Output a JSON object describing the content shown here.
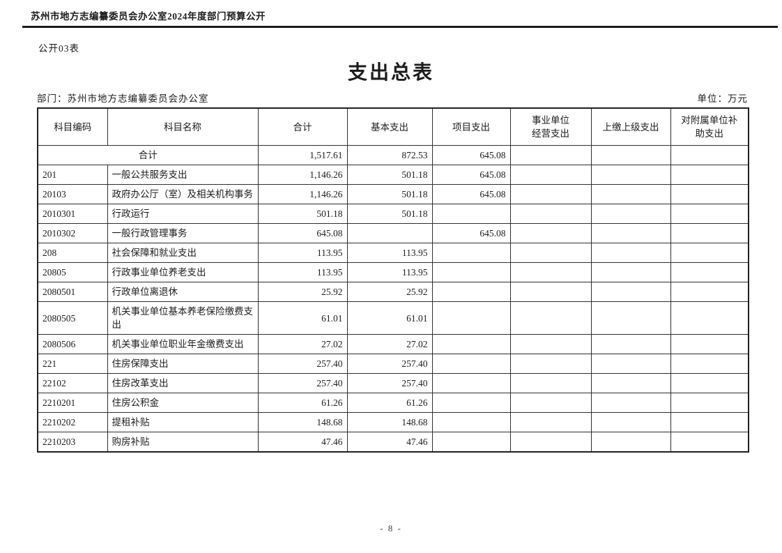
{
  "page": {
    "header_title": "苏州市地方志编纂委员会办公室2024年度部门预算公开",
    "form_label": "公开03表",
    "title": "支出总表",
    "department_label": "部门：苏州市地方志编纂委员会办公室",
    "unit_label": "单位：万元",
    "page_number": "- 8 -"
  },
  "table": {
    "columns": [
      "科目编码",
      "科目名称",
      "合计",
      "基本支出",
      "项目支出",
      "事业单位\n经营支出",
      "上缴上级支出",
      "对附属单位补\n助支出"
    ],
    "total_row": {
      "label": "合计",
      "total": "1,517.61",
      "basic": "872.53",
      "project": "645.08",
      "operating": "",
      "upper": "",
      "subsidy": ""
    },
    "rows": [
      {
        "code": "201",
        "level": 1,
        "name": "一般公共服务支出",
        "total": "1,146.26",
        "basic": "501.18",
        "project": "645.08",
        "operating": "",
        "upper": "",
        "subsidy": ""
      },
      {
        "code": "20103",
        "level": 2,
        "name": "政府办公厅（室）及相关机构事务",
        "total": "1,146.26",
        "basic": "501.18",
        "project": "645.08",
        "operating": "",
        "upper": "",
        "subsidy": ""
      },
      {
        "code": "2010301",
        "level": 3,
        "name": "行政运行",
        "total": "501.18",
        "basic": "501.18",
        "project": "",
        "operating": "",
        "upper": "",
        "subsidy": ""
      },
      {
        "code": "2010302",
        "level": 3,
        "name": "一般行政管理事务",
        "total": "645.08",
        "basic": "",
        "project": "645.08",
        "operating": "",
        "upper": "",
        "subsidy": ""
      },
      {
        "code": "208",
        "level": 1,
        "name": "社会保障和就业支出",
        "total": "113.95",
        "basic": "113.95",
        "project": "",
        "operating": "",
        "upper": "",
        "subsidy": ""
      },
      {
        "code": "20805",
        "level": 2,
        "name": "行政事业单位养老支出",
        "total": "113.95",
        "basic": "113.95",
        "project": "",
        "operating": "",
        "upper": "",
        "subsidy": ""
      },
      {
        "code": "2080501",
        "level": 3,
        "name": "行政单位离退休",
        "total": "25.92",
        "basic": "25.92",
        "project": "",
        "operating": "",
        "upper": "",
        "subsidy": ""
      },
      {
        "code": "2080505",
        "level": 3,
        "name": "机关事业单位基本养老保险缴费支出",
        "total": "61.01",
        "basic": "61.01",
        "project": "",
        "operating": "",
        "upper": "",
        "subsidy": ""
      },
      {
        "code": "2080506",
        "level": 3,
        "name": "机关事业单位职业年金缴费支出",
        "total": "27.02",
        "basic": "27.02",
        "project": "",
        "operating": "",
        "upper": "",
        "subsidy": ""
      },
      {
        "code": "221",
        "level": 1,
        "name": "住房保障支出",
        "total": "257.40",
        "basic": "257.40",
        "project": "",
        "operating": "",
        "upper": "",
        "subsidy": ""
      },
      {
        "code": "22102",
        "level": 2,
        "name": "住房改革支出",
        "total": "257.40",
        "basic": "257.40",
        "project": "",
        "operating": "",
        "upper": "",
        "subsidy": ""
      },
      {
        "code": "2210201",
        "level": 3,
        "name": "住房公积金",
        "total": "61.26",
        "basic": "61.26",
        "project": "",
        "operating": "",
        "upper": "",
        "subsidy": ""
      },
      {
        "code": "2210202",
        "level": 3,
        "name": "提租补贴",
        "total": "148.68",
        "basic": "148.68",
        "project": "",
        "operating": "",
        "upper": "",
        "subsidy": ""
      },
      {
        "code": "2210203",
        "level": 3,
        "name": "购房补贴",
        "total": "47.46",
        "basic": "47.46",
        "project": "",
        "operating": "",
        "upper": "",
        "subsidy": ""
      }
    ]
  }
}
